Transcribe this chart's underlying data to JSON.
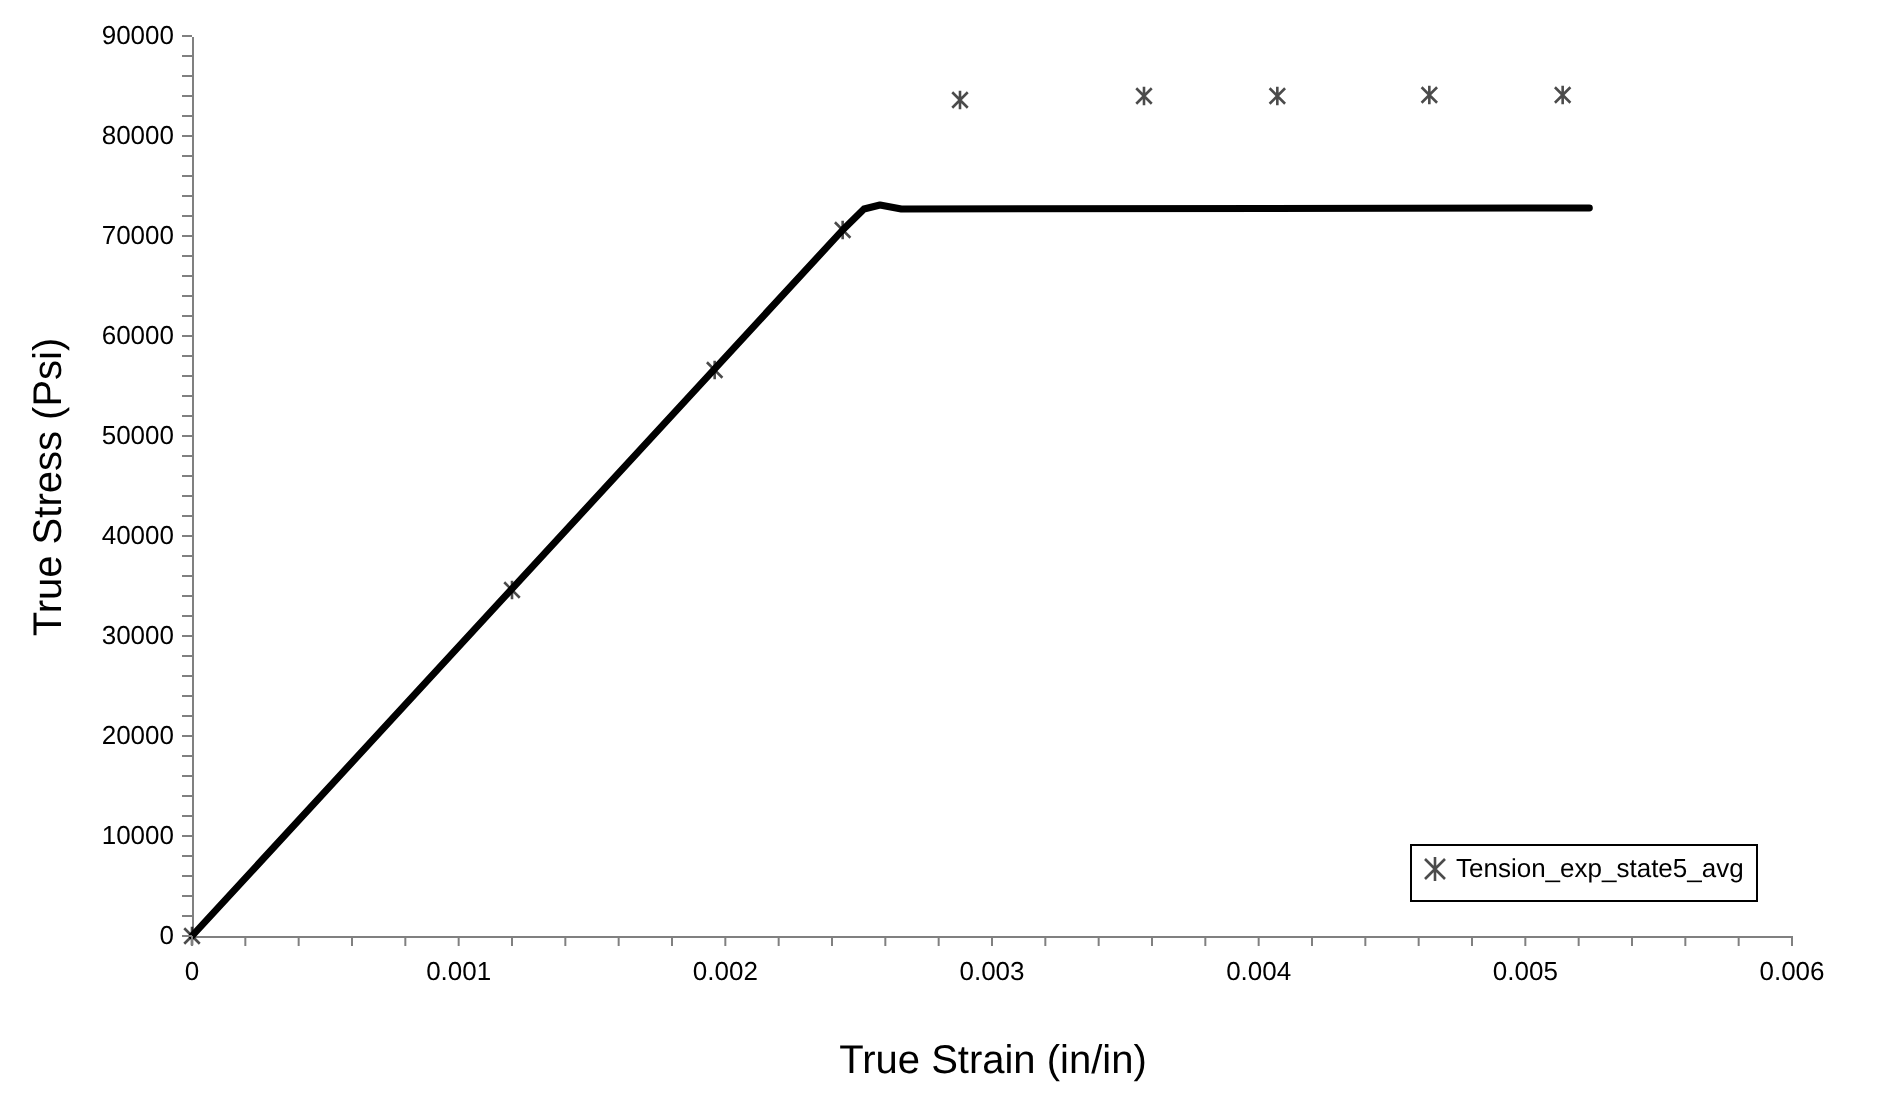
{
  "chart_data": {
    "type": "line",
    "xlabel": "True Strain (in/in)",
    "ylabel": "True Stress (Psi)",
    "series": [
      {
        "type": "line",
        "color": "#000000",
        "line_style": "solid",
        "x": [
          0,
          0.00244,
          0.00252,
          0.00258,
          0.00266,
          0.00524
        ],
        "values": [
          0,
          70600,
          72700,
          73100,
          72700,
          72800
        ]
      },
      {
        "type": "scatter",
        "name": "Tension_exp_state5_avg",
        "color": "#000000",
        "marker": "cross",
        "x": [
          0,
          0.0012,
          0.00196,
          0.00244,
          0.00288,
          0.00357,
          0.00407,
          0.00464,
          0.00514
        ],
        "values": [
          0,
          34600,
          56600,
          70600,
          83600,
          84000,
          84000,
          84100,
          84100
        ]
      }
    ],
    "xlim": [
      0,
      0.006
    ],
    "ylim": [
      0,
      90000
    ],
    "xticks": [
      0,
      {
        "value": 0.0002,
        "label": null
      },
      {
        "value": 0.0004,
        "label": null
      },
      {
        "value": 0.0006,
        "label": null
      },
      {
        "value": 0.0008,
        "label": null
      },
      0.001,
      {
        "value": 0.0012,
        "label": null
      },
      {
        "value": 0.0014,
        "label": null
      },
      {
        "value": 0.0016,
        "label": null
      },
      {
        "value": 0.0018,
        "label": null
      },
      0.002,
      {
        "value": 0.0022,
        "label": null
      },
      {
        "value": 0.0024,
        "label": null
      },
      {
        "value": 0.0026,
        "label": null
      },
      {
        "value": 0.0028,
        "label": null
      },
      0.003,
      {
        "value": 0.0032,
        "label": null
      },
      {
        "value": 0.0034,
        "label": null
      },
      {
        "value": 0.0036,
        "label": null
      },
      {
        "value": 0.0038,
        "label": null
      },
      0.004,
      {
        "value": 0.0042,
        "label": null
      },
      {
        "value": 0.0044,
        "label": null
      },
      {
        "value": 0.0046,
        "label": null
      },
      {
        "value": 0.0048,
        "label": null
      },
      0.005,
      {
        "value": 0.0052,
        "label": null
      },
      {
        "value": 0.0054,
        "label": null
      },
      {
        "value": 0.0056,
        "label": null
      },
      {
        "value": 0.0058,
        "label": null
      },
      0.006
    ],
    "yticks": [
      0,
      {
        "value": 2000,
        "label": null
      },
      {
        "value": 4000,
        "label": null
      },
      {
        "value": 6000,
        "label": null
      },
      {
        "value": 8000,
        "label": null
      },
      10000,
      {
        "value": 12000,
        "label": null
      },
      {
        "value": 14000,
        "label": null
      },
      {
        "value": 16000,
        "label": null
      },
      {
        "value": 18000,
        "label": null
      },
      20000,
      {
        "value": 22000,
        "label": null
      },
      {
        "value": 24000,
        "label": null
      },
      {
        "value": 26000,
        "label": null
      },
      {
        "value": 28000,
        "label": null
      },
      30000,
      {
        "value": 32000,
        "label": null
      },
      {
        "value": 34000,
        "label": null
      },
      {
        "value": 36000,
        "label": null
      },
      {
        "value": 38000,
        "label": null
      },
      40000,
      {
        "value": 42000,
        "label": null
      },
      {
        "value": 44000,
        "label": null
      },
      {
        "value": 46000,
        "label": null
      },
      {
        "value": 48000,
        "label": null
      },
      50000,
      {
        "value": 52000,
        "label": null
      },
      {
        "value": 54000,
        "label": null
      },
      {
        "value": 56000,
        "label": null
      },
      {
        "value": 58000,
        "label": null
      },
      60000,
      {
        "value": 62000,
        "label": null
      },
      {
        "value": 64000,
        "label": null
      },
      {
        "value": 66000,
        "label": null
      },
      {
        "value": 68000,
        "label": null
      },
      70000,
      {
        "value": 72000,
        "label": null
      },
      {
        "value": 74000,
        "label": null
      },
      {
        "value": 76000,
        "label": null
      },
      {
        "value": 78000,
        "label": null
      },
      80000,
      {
        "value": 82000,
        "label": null
      },
      {
        "value": 84000,
        "label": null
      },
      {
        "value": 86000,
        "label": null
      },
      {
        "value": 88000,
        "label": null
      },
      90000
    ],
    "grid": false,
    "legend": "bottom right"
  }
}
